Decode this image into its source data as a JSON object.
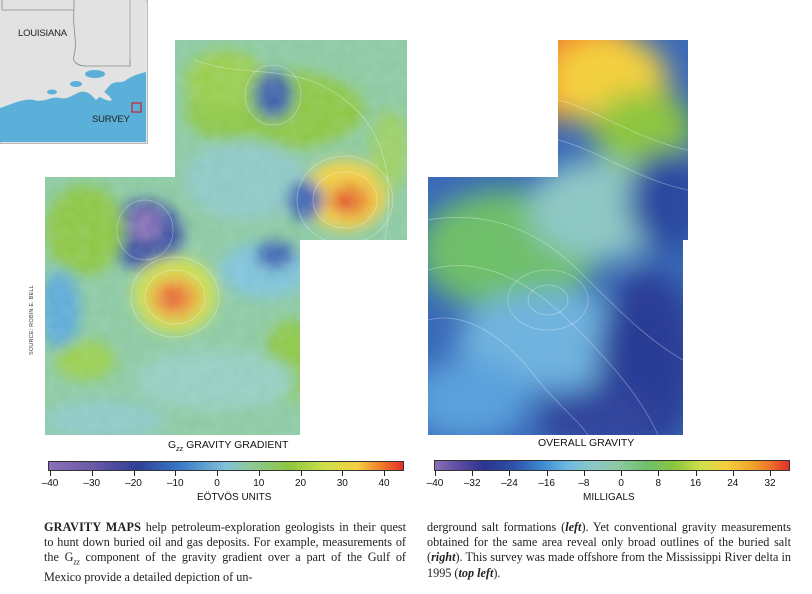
{
  "inset": {
    "state_label": "LOUISIANA",
    "marker_label": "SURVEY"
  },
  "left_map": {
    "source_credit": "SOURCE: ROBIN E. BELL",
    "title_main": "G",
    "title_sub": "zz",
    "title_rest": " GRAVITY GRADIENT",
    "unit": "EÖTVÖS UNITS",
    "ticks": [
      "–40",
      "–30",
      "–20",
      "–10",
      "0",
      "10",
      "20",
      "30",
      "40"
    ]
  },
  "right_map": {
    "title": "OVERALL GRAVITY",
    "unit": "MILLIGALS",
    "ticks": [
      "–40",
      "–32",
      "–24",
      "–16",
      "–8",
      "0",
      "8",
      "16",
      "24",
      "32"
    ]
  },
  "caption": {
    "lead": "GRAVITY MAPS",
    "p1_a": " help petroleum-exploration geologists in their quest to hunt down buried oil and gas deposits. For example, measurements of the G",
    "p1_sub": "zz",
    "p1_b": " component of the gravity gradient over a part of the Gulf of Mexico provide a detailed depiction of un-",
    "p2_a": "derground salt formations (",
    "p2_left": "left",
    "p2_b": "). Yet conventional gravity measurements obtained for the same area reveal only broad outlines of the buried salt (",
    "p2_right": "right",
    "p2_c": "). This survey was made offshore from the Mississippi River delta in 1995 (",
    "p2_topleft": "top left",
    "p2_d": ")."
  },
  "colors": {
    "water": "#5ab0d8",
    "land": "#e2e2e2",
    "survey_marker": "#d0202a"
  }
}
